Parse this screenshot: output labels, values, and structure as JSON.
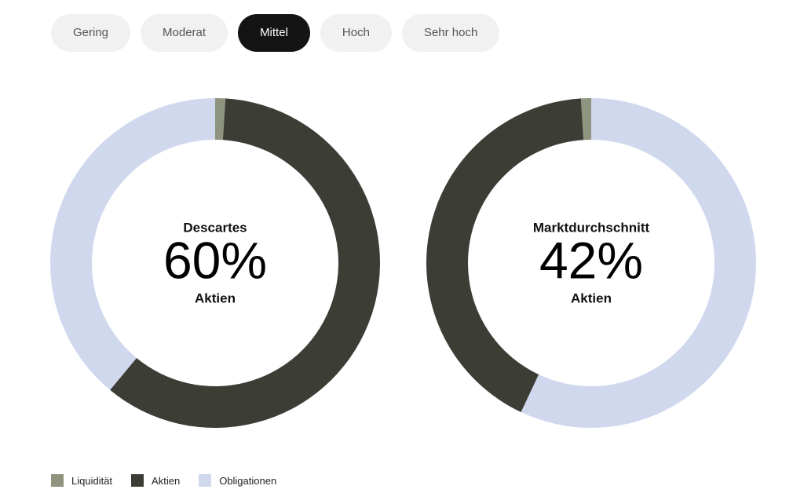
{
  "tabs": [
    "Gering",
    "Moderat",
    "Mittel",
    "Hoch",
    "Sehr hoch"
  ],
  "active_tab": 2,
  "chart_data": [
    {
      "type": "pie",
      "title": "Descartes",
      "center_value": "60%",
      "center_label": "Aktien",
      "categories": [
        "Liquidität",
        "Aktien",
        "Obligationen"
      ],
      "values": [
        1,
        60,
        39
      ],
      "colors": [
        "#8f947e",
        "#3c3e36",
        "#d0d8ee"
      ]
    },
    {
      "type": "pie",
      "title": "Marktdurchschnitt",
      "center_value": "42%",
      "center_label": "Aktien",
      "categories": [
        "Liquidität",
        "Aktien",
        "Obligationen"
      ],
      "values": [
        1,
        42,
        57
      ],
      "colors": [
        "#8f947e",
        "#3c3e36",
        "#d0d8ee"
      ]
    }
  ]
}
